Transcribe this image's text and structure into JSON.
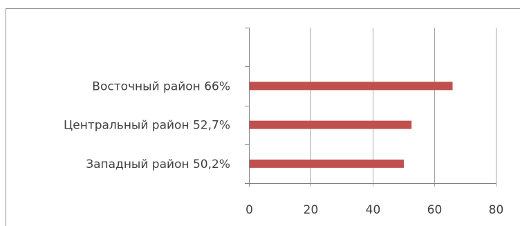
{
  "chart_data": {
    "type": "bar",
    "orientation": "horizontal",
    "categories": [
      "Восточный район  66%",
      "Центральный район  52,7%",
      "Западный район  50,2%"
    ],
    "values": [
      66,
      52.7,
      50.2
    ],
    "xlim": [
      0,
      80
    ],
    "x_ticks": [
      "0",
      "20",
      "40",
      "60",
      "80"
    ],
    "grid": true,
    "legend": "none",
    "bar_color": "#c0504d"
  }
}
